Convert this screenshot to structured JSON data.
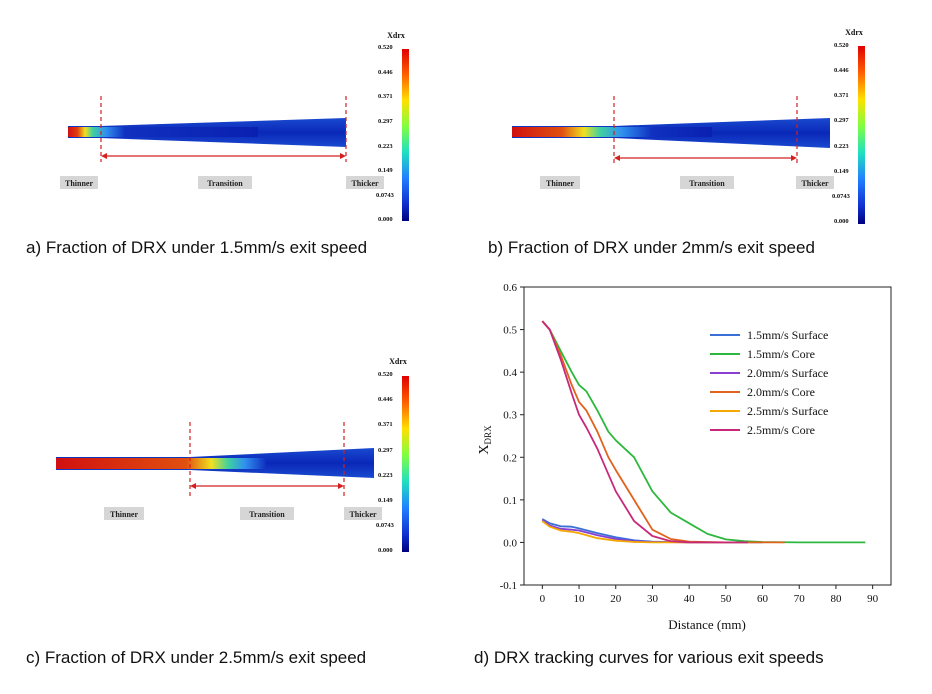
{
  "panels": [
    {
      "caption": "a) Fraction of DRX under 1.5mm/s exit speed",
      "colorbar": {
        "title": "Xdrx",
        "ticks": [
          "0.520",
          "0.446",
          "0.371",
          "0.297",
          "0.223",
          "0.149",
          "0.0743",
          "0.000"
        ]
      },
      "zones": [
        "Thinner",
        "Transition",
        "Thicker"
      ]
    },
    {
      "caption": "b) Fraction of DRX under 2mm/s exit speed",
      "colorbar": {
        "title": "Xdrx",
        "ticks": [
          "0.520",
          "0.446",
          "0.371",
          "0.297",
          "0.223",
          "0.149",
          "0.0743",
          "0.000"
        ]
      },
      "zones": [
        "Thinner",
        "Transition",
        "Thicker"
      ]
    },
    {
      "caption": "c) Fraction of DRX under 2.5mm/s exit speed",
      "colorbar": {
        "title": "Xdrx",
        "ticks": [
          "0.520",
          "0.446",
          "0.371",
          "0.297",
          "0.223",
          "0.149",
          "0.0743",
          "0.000"
        ]
      },
      "zones": [
        "Thinner",
        "Transition",
        "Thicker"
      ]
    }
  ],
  "caption_d": "d) DRX tracking curves for various exit speeds",
  "colors": {
    "blue": "#3a6fd8",
    "green": "#2db83d",
    "purple": "#8a3fd1",
    "orange": "#e0621c",
    "yellow": "#f5a800",
    "magenta": "#c8287a",
    "colorbar_bg": "#00007f",
    "guide_red": "#d32020"
  },
  "chart_data": {
    "type": "line",
    "xlabel": "Distance (mm)",
    "ylabel_main": "X",
    "ylabel_sub": "DRX",
    "xlim": [
      -5,
      95
    ],
    "ylim": [
      -0.1,
      0.6
    ],
    "xticks": [
      0,
      10,
      20,
      30,
      40,
      50,
      60,
      70,
      80,
      90
    ],
    "yticks": [
      -0.1,
      0.0,
      0.1,
      0.2,
      0.3,
      0.4,
      0.5,
      0.6
    ],
    "legend_position": "top-right",
    "series": [
      {
        "name": "1.5mm/s Surface",
        "color": "#3a6fd8",
        "x": [
          0,
          2,
          5,
          8,
          10,
          15,
          20,
          25,
          30,
          40,
          50,
          60
        ],
        "y": [
          0.055,
          0.045,
          0.038,
          0.037,
          0.033,
          0.022,
          0.012,
          0.005,
          0.002,
          0.0,
          0.0,
          0.0
        ]
      },
      {
        "name": "1.5mm/s Core",
        "color": "#2db83d",
        "x": [
          0,
          2,
          5,
          8,
          10,
          12,
          15,
          18,
          20,
          25,
          30,
          35,
          40,
          45,
          50,
          55,
          60,
          70,
          80,
          88
        ],
        "y": [
          0.52,
          0.5,
          0.45,
          0.4,
          0.37,
          0.355,
          0.31,
          0.26,
          0.24,
          0.2,
          0.12,
          0.07,
          0.045,
          0.02,
          0.007,
          0.003,
          0.001,
          0.0,
          0.0,
          0.0
        ]
      },
      {
        "name": "2.0mm/s Surface",
        "color": "#8a3fd1",
        "x": [
          0,
          2,
          5,
          8,
          10,
          15,
          20,
          25,
          30,
          40,
          50
        ],
        "y": [
          0.053,
          0.04,
          0.032,
          0.03,
          0.028,
          0.017,
          0.008,
          0.003,
          0.001,
          0.0,
          0.0
        ]
      },
      {
        "name": "2.0mm/s Core",
        "color": "#e0621c",
        "x": [
          0,
          2,
          5,
          8,
          10,
          12,
          15,
          18,
          20,
          25,
          30,
          35,
          40,
          50,
          60,
          66
        ],
        "y": [
          0.52,
          0.5,
          0.44,
          0.37,
          0.33,
          0.31,
          0.26,
          0.2,
          0.17,
          0.1,
          0.03,
          0.008,
          0.002,
          0.0,
          0.0,
          0.0
        ]
      },
      {
        "name": "2.5mm/s Surface",
        "color": "#f5a800",
        "x": [
          0,
          2,
          5,
          8,
          10,
          15,
          20,
          25,
          30,
          40,
          50
        ],
        "y": [
          0.05,
          0.037,
          0.028,
          0.025,
          0.022,
          0.01,
          0.004,
          0.001,
          0.0,
          0.0,
          0.0
        ]
      },
      {
        "name": "2.5mm/s Core",
        "color": "#c8287a",
        "x": [
          0,
          2,
          5,
          8,
          10,
          12,
          15,
          18,
          20,
          25,
          30,
          35,
          40,
          50,
          56
        ],
        "y": [
          0.52,
          0.5,
          0.43,
          0.35,
          0.3,
          0.27,
          0.22,
          0.16,
          0.12,
          0.05,
          0.015,
          0.003,
          0.0,
          0.0,
          0.0
        ]
      }
    ]
  }
}
